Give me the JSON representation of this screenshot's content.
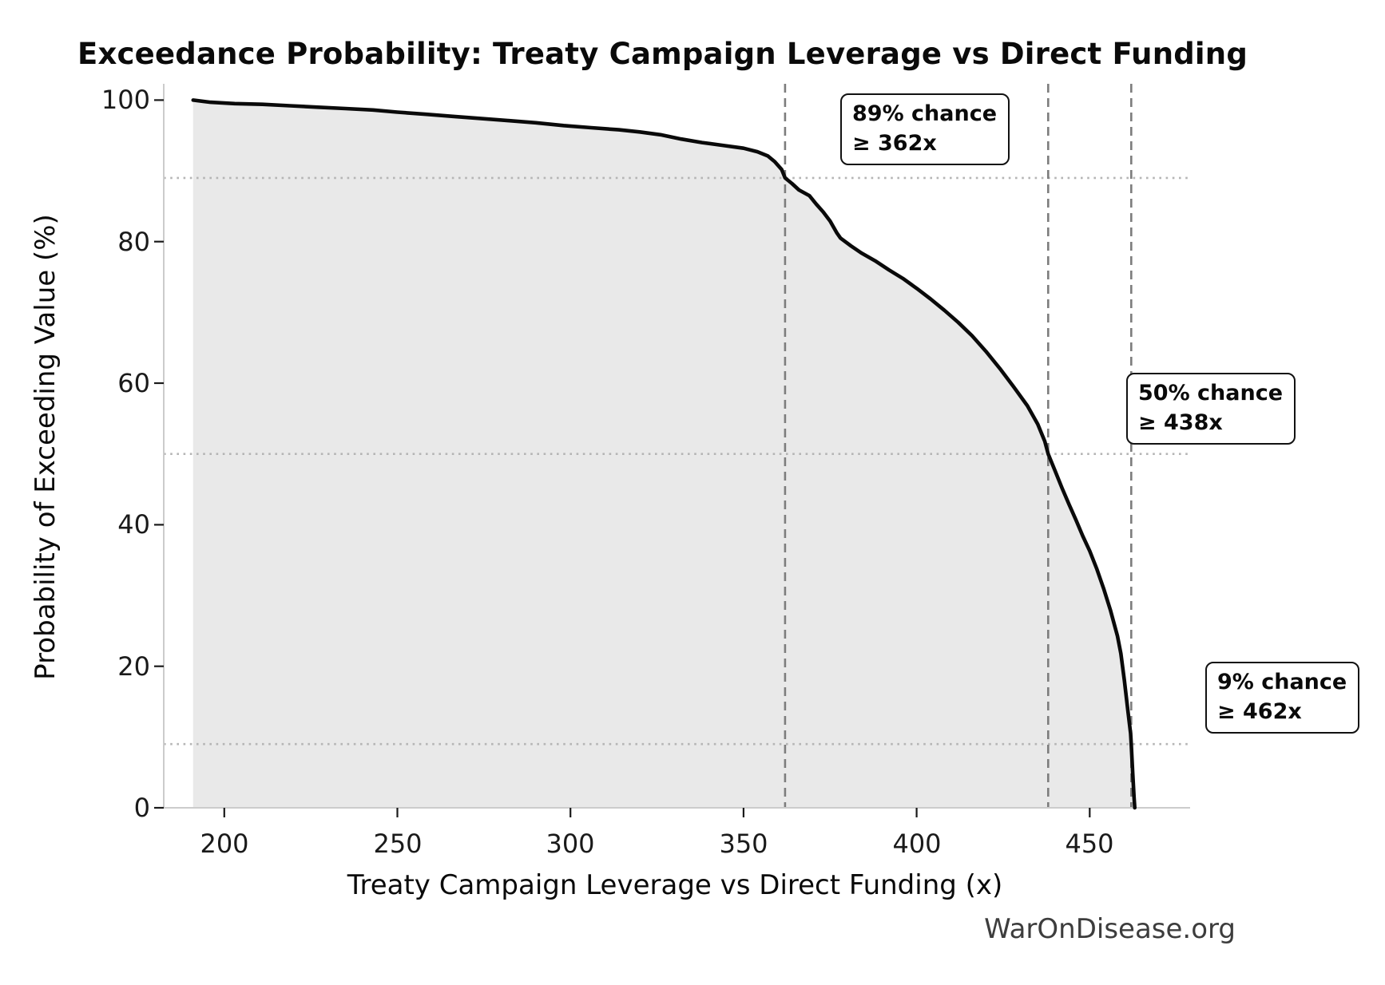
{
  "watermark": "WarOnDisease.org",
  "chart_data": {
    "type": "line",
    "subtype": "exceedance-probability-curve",
    "title": "Exceedance Probability: Treaty Campaign Leverage vs Direct Funding",
    "xlabel": "Treaty Campaign Leverage vs Direct Funding (x)",
    "ylabel": "Probability of Exceeding Value (%)",
    "x_ticks": [
      200,
      250,
      300,
      350,
      400,
      450
    ],
    "y_ticks": [
      0,
      20,
      40,
      60,
      80,
      100
    ],
    "x_range": [
      182.5,
      479
    ],
    "y_range": [
      0,
      102.3
    ],
    "grid": false,
    "legend": "none",
    "curve": [
      [
        191,
        100
      ],
      [
        196,
        99.7
      ],
      [
        203,
        99.5
      ],
      [
        211,
        99.4
      ],
      [
        219,
        99.2
      ],
      [
        227,
        99.0
      ],
      [
        235,
        98.8
      ],
      [
        243,
        98.6
      ],
      [
        250,
        98.3
      ],
      [
        258,
        98.0
      ],
      [
        266,
        97.7
      ],
      [
        274,
        97.4
      ],
      [
        282,
        97.1
      ],
      [
        290,
        96.8
      ],
      [
        298,
        96.4
      ],
      [
        306,
        96.1
      ],
      [
        314,
        95.8
      ],
      [
        320,
        95.5
      ],
      [
        326,
        95.1
      ],
      [
        332,
        94.5
      ],
      [
        338,
        94.0
      ],
      [
        344,
        93.6
      ],
      [
        350,
        93.2
      ],
      [
        354,
        92.7
      ],
      [
        357,
        92.1
      ],
      [
        359,
        91.3
      ],
      [
        361,
        90.2
      ],
      [
        362,
        89.0
      ],
      [
        364,
        88.2
      ],
      [
        366,
        87.3
      ],
      [
        369,
        86.5
      ],
      [
        371,
        85.3
      ],
      [
        373,
        84.2
      ],
      [
        375,
        82.9
      ],
      [
        377,
        81.2
      ],
      [
        378,
        80.5
      ],
      [
        381,
        79.4
      ],
      [
        384,
        78.4
      ],
      [
        388,
        77.3
      ],
      [
        392,
        76.0
      ],
      [
        396,
        74.8
      ],
      [
        400,
        73.4
      ],
      [
        404,
        71.9
      ],
      [
        408,
        70.3
      ],
      [
        412,
        68.6
      ],
      [
        416,
        66.7
      ],
      [
        420,
        64.5
      ],
      [
        424,
        62.1
      ],
      [
        428,
        59.5
      ],
      [
        432,
        56.8
      ],
      [
        435,
        54.2
      ],
      [
        437,
        51.8
      ],
      [
        438,
        50.0
      ],
      [
        440,
        47.6
      ],
      [
        442,
        45.2
      ],
      [
        444,
        42.9
      ],
      [
        446,
        40.7
      ],
      [
        448,
        38.4
      ],
      [
        450,
        36.3
      ],
      [
        452,
        33.8
      ],
      [
        454,
        31.0
      ],
      [
        456,
        27.9
      ],
      [
        458,
        24.3
      ],
      [
        459,
        21.8
      ],
      [
        460,
        18.0
      ],
      [
        461,
        13.8
      ],
      [
        461.8,
        10.5
      ],
      [
        462,
        9.0
      ],
      [
        462.4,
        5.0
      ],
      [
        462.8,
        1.5
      ],
      [
        463,
        0
      ]
    ],
    "markers": {
      "vline_values": [
        362,
        438,
        462
      ],
      "hline_probs": [
        89,
        50,
        9
      ]
    },
    "annotations": [
      {
        "chance_pct": 89,
        "threshold_x": 362,
        "line1": "89% chance",
        "line2": "≥ 362x"
      },
      {
        "chance_pct": 50,
        "threshold_x": 438,
        "line1": "50% chance",
        "line2": "≥ 438x"
      },
      {
        "chance_pct": 9,
        "threshold_x": 462,
        "line1": "9% chance",
        "line2": "≥ 462x"
      }
    ],
    "colors": {
      "curve": "#0a0a0a",
      "fill": "#e9e9e9",
      "dashed_marker": "#7d7d7d",
      "dotted_marker": "#b5b5b5",
      "spine": "#cccccc",
      "tick": "#1a1a1a",
      "text": "#0a0a0a",
      "watermark": "#3d3d3d"
    }
  }
}
